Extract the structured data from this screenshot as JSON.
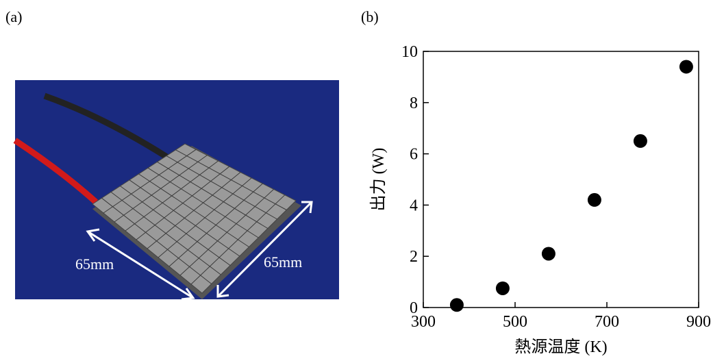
{
  "panel_labels": [
    "(a)",
    "(b)"
  ],
  "photo": {
    "annotations": [
      "65mm",
      "65mm"
    ]
  },
  "chart_data": {
    "type": "scatter",
    "xlabel": "熱源温度 (K)",
    "ylabel": "出力 (W)",
    "x": [
      373,
      473,
      573,
      673,
      773,
      873
    ],
    "series": [
      {
        "color": "#000000",
        "values": [
          0.1,
          0.75,
          2.1,
          4.2,
          6.5,
          9.4
        ]
      }
    ],
    "xlim": [
      300,
      900
    ],
    "xticks": [
      300,
      500,
      700,
      900
    ],
    "ylim": [
      0,
      10
    ],
    "yticks": [
      0,
      2,
      4,
      6,
      8,
      10
    ]
  }
}
